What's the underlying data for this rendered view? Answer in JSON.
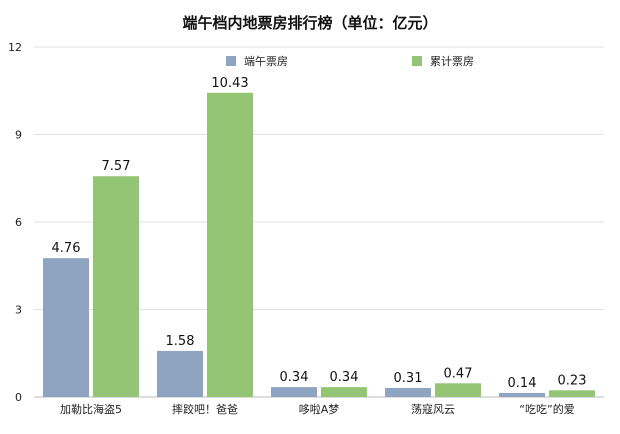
{
  "chart_data": {
    "type": "bar",
    "title": "端午档内地票房排行榜（单位：亿元）",
    "xlabel": "",
    "ylabel": "",
    "ylim": [
      0,
      12
    ],
    "yticks": [
      "0",
      "3",
      "6",
      "9",
      "12"
    ],
    "grid": true,
    "legend_position": "top",
    "categories": [
      "加勒比海盗5",
      "摔跤吧！爸爸",
      "哆啦A梦",
      "荡寇风云",
      "“吃吃”的爱"
    ],
    "series": [
      {
        "name": "端午票房",
        "color": "#8ea4c0",
        "values": [
          4.76,
          1.58,
          0.34,
          0.31,
          0.14
        ],
        "labels": [
          "4.76",
          "1.58",
          "0.34",
          "0.31",
          "0.14"
        ]
      },
      {
        "name": "累计票房",
        "color": "#93c574",
        "values": [
          7.57,
          10.43,
          0.34,
          0.47,
          0.23
        ],
        "labels": [
          "7.57",
          "10.43",
          "0.34",
          "0.47",
          "0.23"
        ]
      }
    ]
  }
}
